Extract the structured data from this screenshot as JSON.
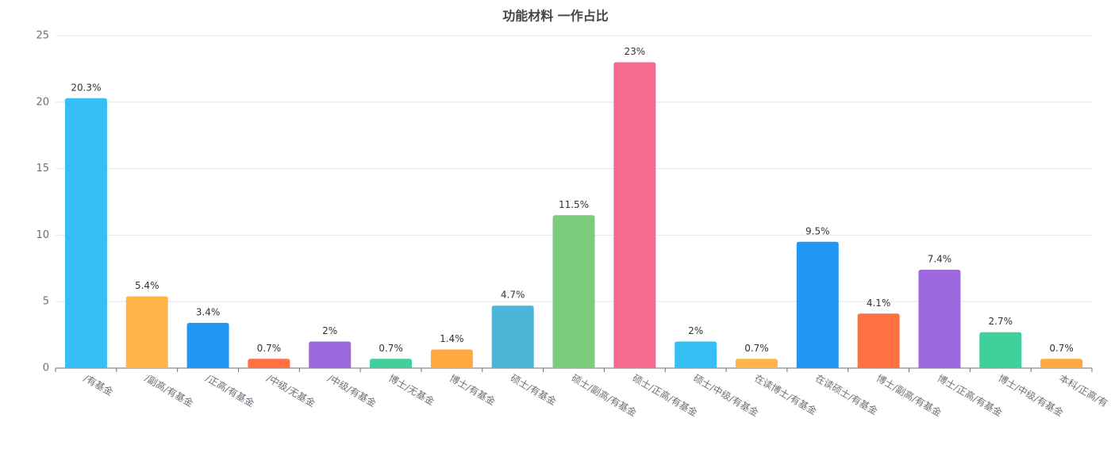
{
  "chart_data": {
    "type": "bar",
    "title": "功能材料 一作占比",
    "categories": [
      "/有基金",
      "/副高/有基金",
      "/正高/有基金",
      "/中级/无基金",
      "/中级/有基金",
      "博士/无基金",
      "博士/有基金",
      "硕士/有基金",
      "硕士/副高/有基金",
      "硕士/正高/有基金",
      "硕士/中级/有基金",
      "在读博士/有基金",
      "在读硕士/有基金",
      "博士/副高/有基金",
      "博士/正高/有基金",
      "博士/中级/有基金",
      "本科/正高/有"
    ],
    "values": [
      20.3,
      5.4,
      3.4,
      0.7,
      2,
      0.7,
      1.4,
      4.7,
      11.5,
      23,
      2,
      0.7,
      9.5,
      4.1,
      7.4,
      2.7,
      0.7
    ],
    "value_labels": [
      "20.3%",
      "5.4%",
      "3.4%",
      "0.7%",
      "2%",
      "0.7%",
      "1.4%",
      "4.7%",
      "11.5%",
      "23%",
      "2%",
      "0.7%",
      "9.5%",
      "4.1%",
      "7.4%",
      "2.7%",
      "0.7%"
    ],
    "colors": [
      "#36bff5",
      "#ffb54a",
      "#2196f3",
      "#ff7043",
      "#9c6ade",
      "#41d09b",
      "#ffa940",
      "#4bb6d8",
      "#7ccc7c",
      "#f56a8f",
      "#36bff5",
      "#ffb54a",
      "#2196f3",
      "#ff7043",
      "#9c6ade",
      "#41d09b",
      "#ffa940"
    ],
    "ylim": [
      0,
      25
    ],
    "yticks": [
      0,
      5,
      10,
      15,
      20,
      25
    ],
    "grid": true
  }
}
